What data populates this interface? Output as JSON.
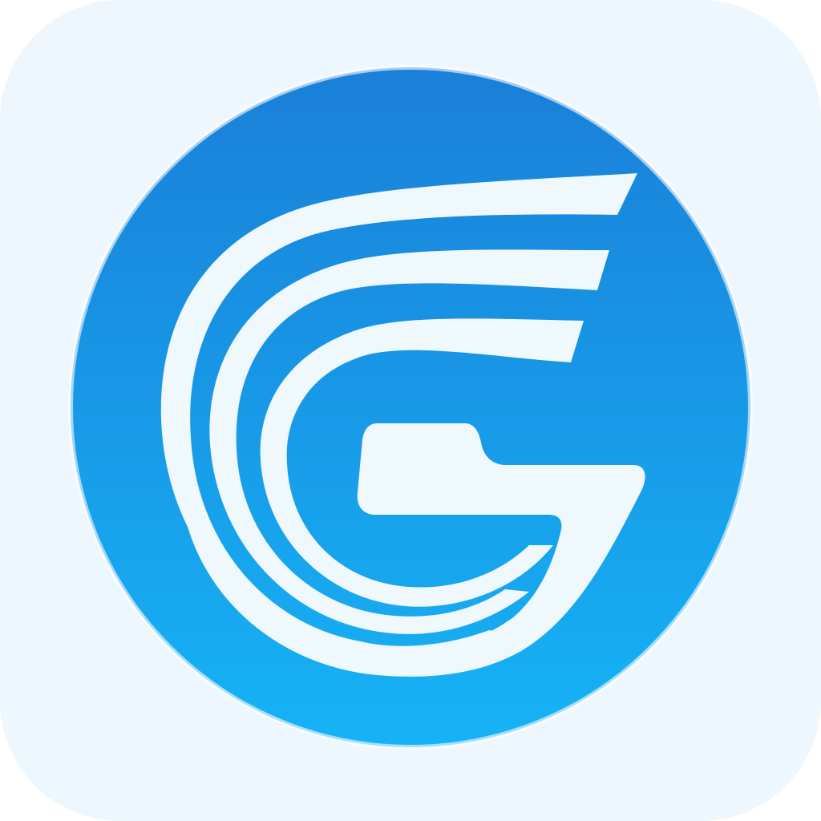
{
  "icon": {
    "name": "g-wing-logo-icon",
    "colors": {
      "background": "#edf7fd",
      "circle_top": "#1a7fd8",
      "circle_bottom": "#16b3f6",
      "glyph": "#eef8fd"
    }
  }
}
